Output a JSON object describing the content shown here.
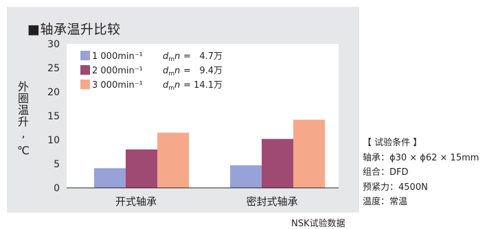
{
  "chart_data": {
    "type": "bar",
    "title": "■轴承温升比较",
    "ylabel": "外圈温升,℃",
    "ylim": [
      0,
      30
    ],
    "yticks": [
      0,
      5,
      10,
      15,
      20,
      25,
      30
    ],
    "categories": [
      "开式轴承",
      "密封式轴承"
    ],
    "grid": false,
    "legend_position": "top-left",
    "series": [
      {
        "name": "1 000min⁻¹",
        "dmn": "4.7万",
        "color": "#97a3d6",
        "values": [
          4.1,
          4.7
        ]
      },
      {
        "name": "2 000min⁻¹",
        "dmn": "9.4万",
        "color": "#9e4a72",
        "values": [
          8.0,
          10.2
        ]
      },
      {
        "name": "3 000min⁻¹",
        "dmn": "14.1万",
        "color": "#f6a98a",
        "values": [
          11.5,
          14.2
        ]
      }
    ]
  },
  "legend_dmn_label": "dmn",
  "conditions": {
    "heading": "【 试验条件 】",
    "lines": [
      "轴承：ϕ30 × ϕ62 × 15mm",
      "组合：DFD",
      "预紧力：4500N",
      "温度：常温"
    ]
  },
  "source": "NSK试验数据"
}
